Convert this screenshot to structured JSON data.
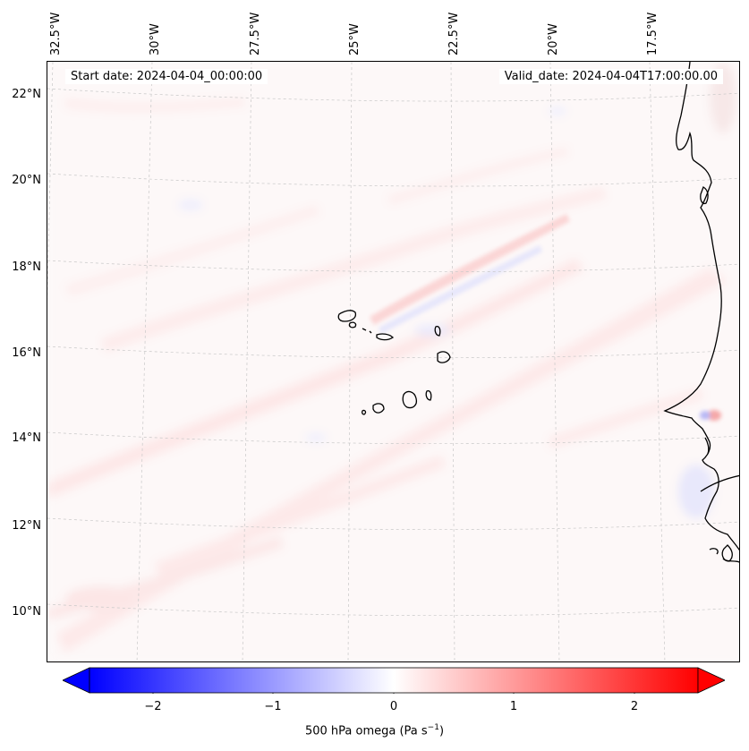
{
  "map": {
    "lon_labels": [
      "32.5°W",
      "30°W",
      "27.5°W",
      "25°W",
      "22.5°W",
      "20°W",
      "17.5°W"
    ],
    "lat_labels": [
      "22°N",
      "20°N",
      "18°N",
      "16°N",
      "14°N",
      "12°N",
      "10°N"
    ],
    "start_date": "Start date: 2024-04-04_00:00:00",
    "valid_date": "Valid_date: 2024-04-04T17:00:00.00",
    "field": "500 hPa omega",
    "colormap": "bwr",
    "vmin": -2.5,
    "vmax": 2.5,
    "colors": {
      "negative": "#0000ff",
      "zero": "#ffffff",
      "positive": "#ff0000",
      "coast": "#000000",
      "grid": "#cccccc"
    }
  },
  "colorbar": {
    "tick_labels": [
      "−2",
      "−1",
      "0",
      "1",
      "2"
    ],
    "tick_values": [
      -2,
      -1,
      0,
      1,
      2
    ],
    "label": "500 hPa omega (Pa s",
    "label_sup": "−1",
    "label_end": ")",
    "extend": "both"
  }
}
